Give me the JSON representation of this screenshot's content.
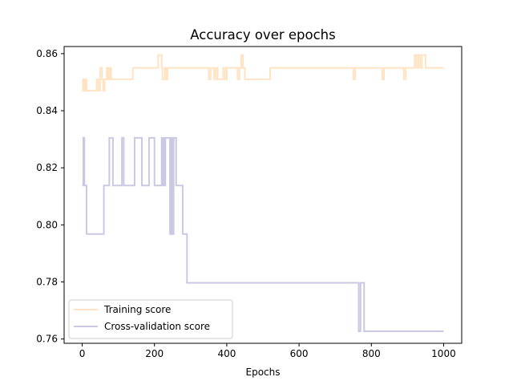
{
  "chart_data": {
    "type": "line",
    "title": "Accuracy over epochs",
    "xlabel": "Epochs",
    "ylabel": "",
    "xlim": [
      -50,
      1050
    ],
    "ylim": [
      0.7585,
      0.8625
    ],
    "xticks": [
      0,
      200,
      400,
      600,
      800,
      1000
    ],
    "xtick_labels": [
      "0",
      "200",
      "400",
      "600",
      "800",
      "1000"
    ],
    "yticks": [
      0.76,
      0.78,
      0.8,
      0.82,
      0.84,
      0.86
    ],
    "ytick_labels": [
      "0.76",
      "0.78",
      "0.80",
      "0.82",
      "0.84",
      "0.86"
    ],
    "grid": false,
    "legend_position": "lower-left",
    "series": [
      {
        "name": "Training score",
        "color": "#ffe4c4",
        "step": true,
        "x": [
          0,
          2,
          4,
          6,
          8,
          10,
          12,
          40,
          45,
          50,
          55,
          58,
          62,
          68,
          72,
          76,
          80,
          140,
          210,
          220,
          222,
          228,
          232,
          236,
          350,
          355,
          365,
          370,
          375,
          390,
          395,
          400,
          430,
          435,
          440,
          445,
          450,
          455,
          520,
          525,
          750,
          755,
          830,
          835,
          890,
          895,
          900,
          920,
          925,
          930,
          935,
          940,
          945,
          950,
          1000
        ],
        "y": [
          0.847,
          0.851,
          0.847,
          0.851,
          0.847,
          0.851,
          0.847,
          0.851,
          0.847,
          0.855,
          0.851,
          0.847,
          0.851,
          0.855,
          0.851,
          0.855,
          0.851,
          0.855,
          0.8595,
          0.855,
          0.851,
          0.855,
          0.851,
          0.855,
          0.851,
          0.855,
          0.851,
          0.855,
          0.851,
          0.855,
          0.851,
          0.855,
          0.851,
          0.855,
          0.8595,
          0.855,
          0.851,
          0.851,
          0.855,
          0.855,
          0.851,
          0.855,
          0.851,
          0.855,
          0.851,
          0.855,
          0.855,
          0.8595,
          0.855,
          0.8595,
          0.855,
          0.8595,
          0.8595,
          0.855,
          0.855
        ]
      },
      {
        "name": "Cross-validation score",
        "color": "#cbc8e4",
        "step": true,
        "x": [
          0,
          3,
          6,
          12,
          55,
          60,
          70,
          75,
          85,
          108,
          110,
          115,
          140,
          145,
          160,
          165,
          180,
          185,
          198,
          200,
          215,
          220,
          222,
          225,
          227,
          230,
          235,
          240,
          243,
          246,
          250,
          253,
          256,
          260,
          278,
          283,
          290,
          760,
          765,
          770,
          780,
          1000
        ],
        "y": [
          0.8138,
          0.8305,
          0.8138,
          0.7968,
          0.7968,
          0.8138,
          0.8138,
          0.8305,
          0.8138,
          0.8138,
          0.8305,
          0.8138,
          0.8138,
          0.8305,
          0.8305,
          0.8138,
          0.8138,
          0.8305,
          0.8305,
          0.8138,
          0.8138,
          0.8305,
          0.8138,
          0.8305,
          0.8138,
          0.8305,
          0.8305,
          0.8305,
          0.7968,
          0.8305,
          0.7968,
          0.8305,
          0.8305,
          0.8138,
          0.7968,
          0.7968,
          0.7797,
          0.7797,
          0.7627,
          0.7797,
          0.7627,
          0.7627
        ]
      }
    ]
  }
}
